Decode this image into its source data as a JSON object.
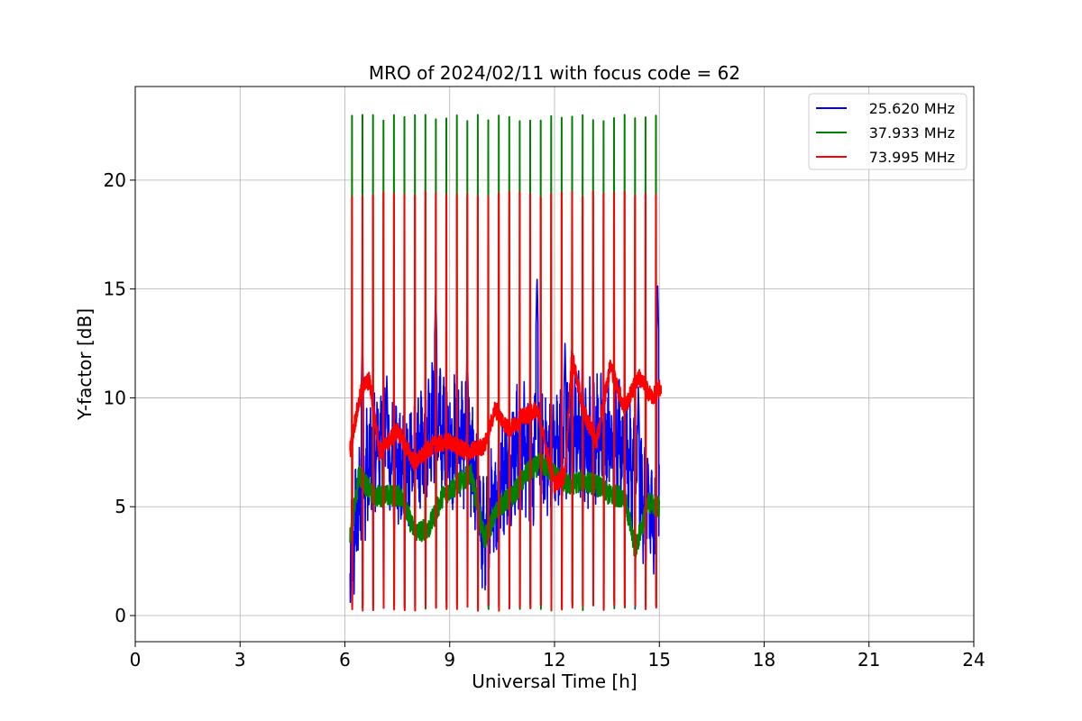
{
  "chart_data": {
    "type": "line",
    "title": "MRO of 2024/02/11 with focus code = 62",
    "xlabel": "Universal Time [h]",
    "ylabel": "Y-factor [dB]",
    "xlim": [
      0,
      24
    ],
    "ylim": [
      -1.2,
      24.3
    ],
    "xticks": [
      "0",
      "3",
      "6",
      "9",
      "12",
      "15",
      "18",
      "21",
      "24"
    ],
    "yticks": [
      "0",
      "5",
      "10",
      "15",
      "20"
    ],
    "grid": true,
    "legend_position": "top-right",
    "cycle_period_h": 0.3,
    "cycle_start_h": 6.2,
    "cycle_end_h": 15.05,
    "series": [
      {
        "name": "25.620 MHz",
        "color": "#0000ff",
        "baseline": {
          "x": [
            6.15,
            6.5,
            7.0,
            7.5,
            8.0,
            8.5,
            9.0,
            9.5,
            10.0,
            10.5,
            11.0,
            11.5,
            12.0,
            12.5,
            13.0,
            13.5,
            14.0,
            14.5,
            15.0
          ],
          "y": [
            2.5,
            6.0,
            8.0,
            6.5,
            7.0,
            9.0,
            8.0,
            8.0,
            3.5,
            6.5,
            8.0,
            7.0,
            7.5,
            8.5,
            8.0,
            8.5,
            7.5,
            5.5,
            4.0
          ]
        },
        "peaks": {
          "x": [
            6.5,
            7.2,
            8.6,
            9.5,
            11.5,
            12.3,
            12.8,
            14.4,
            14.95
          ],
          "y": [
            12.7,
            11.0,
            15.0,
            12.5,
            15.6,
            12.5,
            12.0,
            10.5,
            15.3
          ]
        }
      },
      {
        "name": "37.933 MHz",
        "color": "#008000",
        "baseline": {
          "x": [
            6.15,
            6.4,
            6.8,
            7.2,
            7.6,
            8.0,
            8.4,
            8.8,
            9.2,
            9.6,
            10.0,
            10.4,
            10.8,
            11.2,
            11.6,
            12.0,
            12.4,
            12.8,
            13.2,
            13.6,
            14.0,
            14.3,
            14.7,
            15.0
          ],
          "y": [
            3.5,
            6.5,
            5.5,
            5.5,
            5.5,
            3.8,
            4.0,
            5.5,
            6.0,
            6.5,
            3.5,
            5.0,
            5.5,
            6.5,
            7.0,
            6.5,
            6.0,
            6.2,
            6.0,
            5.5,
            5.5,
            3.0,
            5.2,
            5.0
          ]
        },
        "peak_level": 23.0
      },
      {
        "name": "73.995 MHz",
        "color": "#ff0000",
        "baseline": {
          "x": [
            6.15,
            6.3,
            6.5,
            6.7,
            7.0,
            7.5,
            8.0,
            8.5,
            9.0,
            9.5,
            10.0,
            10.3,
            10.7,
            11.0,
            11.5,
            12.0,
            12.3,
            12.5,
            12.8,
            13.2,
            13.6,
            14.0,
            14.4,
            14.8,
            15.05
          ],
          "y": [
            7.6,
            9.0,
            10.5,
            10.8,
            7.5,
            8.5,
            7.0,
            7.8,
            8.0,
            7.5,
            7.8,
            9.5,
            8.5,
            9.0,
            9.5,
            6.0,
            6.5,
            12.0,
            9.5,
            8.0,
            11.5,
            9.5,
            11.0,
            10.0,
            10.5
          ]
        },
        "peak_level": 19.5
      }
    ]
  }
}
